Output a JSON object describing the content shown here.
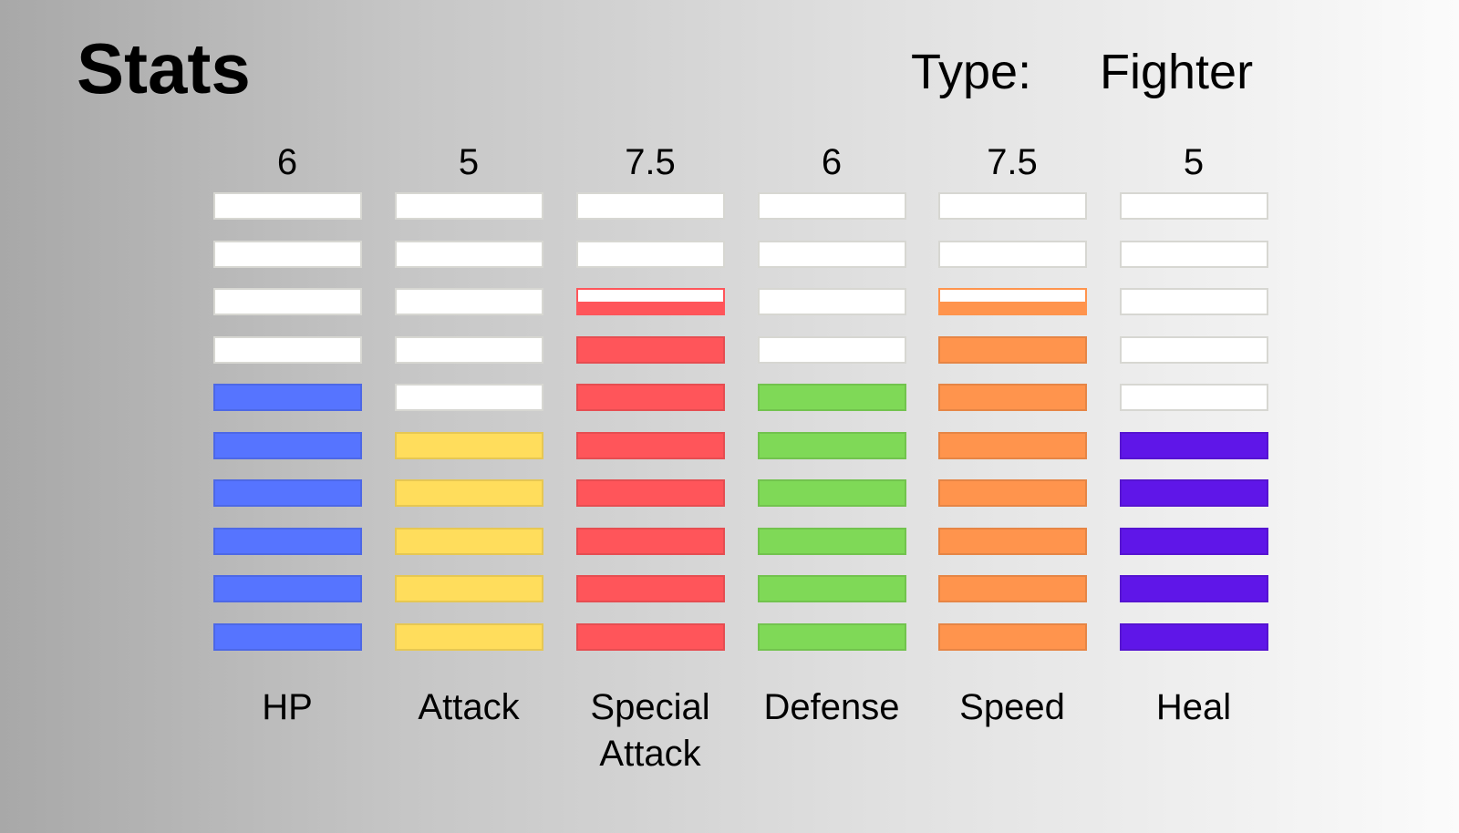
{
  "header": {
    "title": "Stats",
    "type_label": "Type:",
    "type_value": "Fighter"
  },
  "chart_data": {
    "type": "bar",
    "categories": [
      "HP",
      "Attack",
      "Special\nAttack",
      "Defense",
      "Speed",
      "Heal"
    ],
    "values": [
      6,
      5,
      7.5,
      6,
      7.5,
      5
    ],
    "value_labels": [
      "6",
      "5",
      "7.5",
      "6",
      "7.5",
      "5"
    ],
    "ylim": [
      0,
      10
    ],
    "segments": 10,
    "colors": [
      "#5674ff",
      "#ffdd5c",
      "#ff555a",
      "#7fd957",
      "#ff944d",
      "#5f16e8"
    ],
    "empty_color": "#ffffff"
  }
}
